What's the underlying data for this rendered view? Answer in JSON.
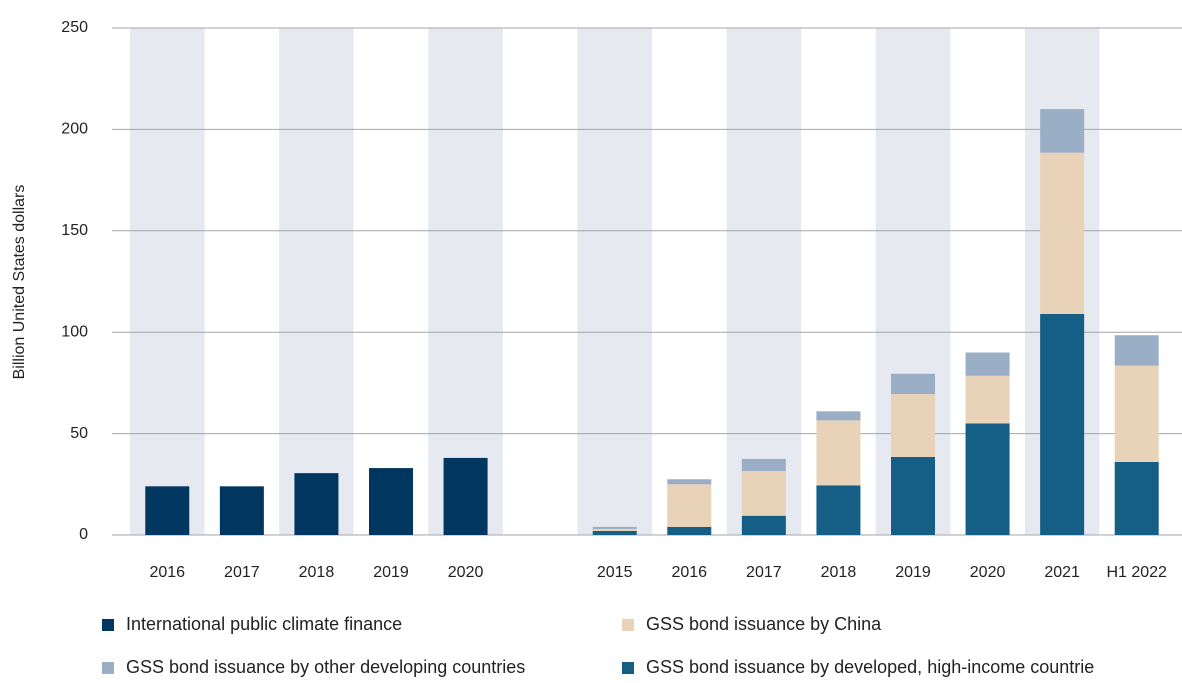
{
  "chart_data": {
    "type": "stacked_bar",
    "y_label": "Billion United States dollars",
    "categories": [
      "2016",
      "2017",
      "2018",
      "2019",
      "2020",
      null,
      "2015",
      "2016",
      "2017",
      "2018",
      "2019",
      "2020",
      "2021",
      "H1 2022"
    ],
    "series": [
      {
        "name": "International public climate finance",
        "color": "#003660",
        "values": [
          24,
          24,
          30.5,
          33,
          38,
          null,
          null,
          null,
          null,
          null,
          null,
          null,
          null,
          null
        ]
      },
      {
        "name": "GSS bond issuance by developed, high-income countrie",
        "color": "#155f86",
        "values": [
          null,
          null,
          null,
          null,
          null,
          null,
          2,
          4,
          9.5,
          24.5,
          38.5,
          55,
          109,
          36
        ]
      },
      {
        "name": "GSS bond issuance by China",
        "color": "#e8d2b8",
        "values": [
          null,
          null,
          null,
          null,
          null,
          null,
          1,
          21,
          22,
          32,
          31,
          23.5,
          79.5,
          47.5
        ]
      },
      {
        "name": "GSS bond issuance by other developing countries",
        "color": "#9aafc6",
        "values": [
          null,
          null,
          null,
          null,
          null,
          null,
          1,
          2.5,
          6,
          4.5,
          10,
          11.5,
          21.5,
          15
        ]
      }
    ],
    "ylim": [
      0,
      250
    ],
    "yticks": [
      0,
      50,
      100,
      150,
      200,
      250
    ],
    "grid": true
  }
}
